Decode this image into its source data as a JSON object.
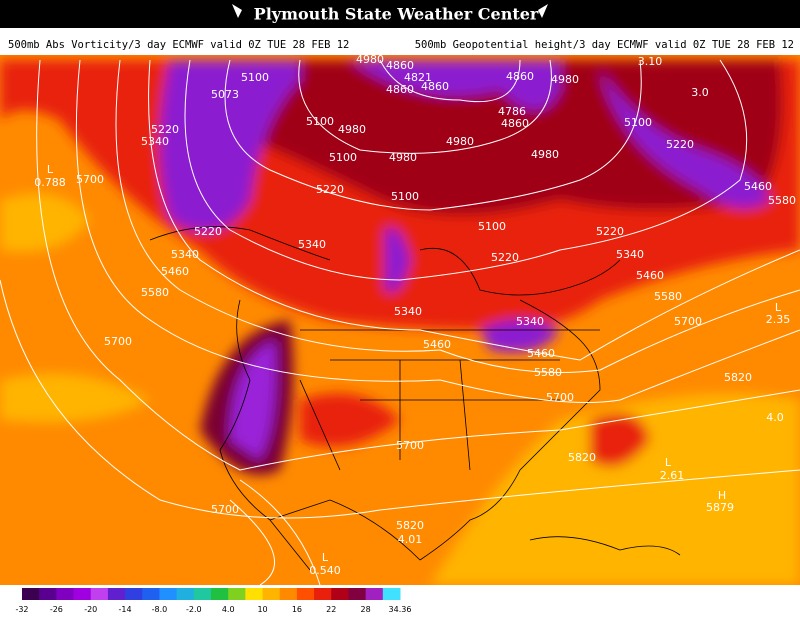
{
  "header": {
    "title": "Plymouth State Weather Center",
    "left_caption": "500mb Abs Vorticity/3 day ECMWF valid 0Z TUE 28 FEB 12",
    "right_caption": "500mb Geopotential height/3 day ECMWF valid 0Z TUE 28 FEB 12"
  },
  "map_labels": [
    "4980",
    "4860",
    "4821",
    "4860",
    "4860",
    "4860",
    "4980",
    "3.10",
    "3.0",
    "5100",
    "5073",
    "5220",
    "5340",
    "L",
    "0.788",
    "5700",
    "5100",
    "4980",
    "5100",
    "4980",
    "4980",
    "4980",
    "4786",
    "4860",
    "5100",
    "5220",
    "5460",
    "5580",
    "5220",
    "5100",
    "5100",
    "5220",
    "5340",
    "5220",
    "5340",
    "5460",
    "5340",
    "5220",
    "5460",
    "5580",
    "5580",
    "5340",
    "5340",
    "5700",
    "L",
    "2.35",
    "5700",
    "5460",
    "5460",
    "5580",
    "5820",
    "5700",
    "4.0",
    "5700",
    "5820",
    "L",
    "2.61",
    "H",
    "5879",
    "5700",
    "5820",
    "4.01",
    "L",
    "0.540"
  ],
  "colorbar": {
    "labels": [
      "-32",
      "-26",
      "-20",
      "-14",
      "-8.0",
      "-2.0",
      "4.0",
      "10",
      "16",
      "22",
      "28",
      "34.36"
    ]
  }
}
